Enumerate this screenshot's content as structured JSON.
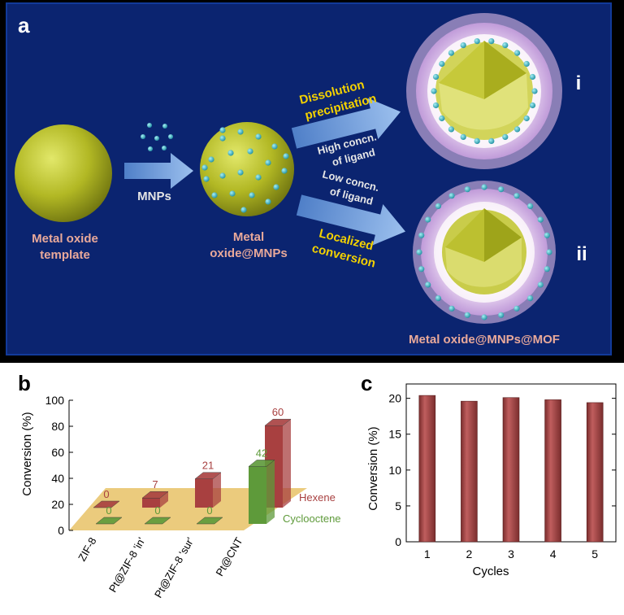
{
  "panel_a": {
    "letter": "a",
    "colors": {
      "background": "#0b2470",
      "panel_border": "#123a9a",
      "label_pink": "#e9a99a",
      "label_yellow": "#f3d100",
      "label_white": "#e6e6e6",
      "sphere": "#b8c02a",
      "mnp": "#3bb6c8"
    },
    "left_label": [
      "Metal oxide",
      "template"
    ],
    "arrow1_label": "MNPs",
    "middle_label": [
      "Metal",
      "oxide@MNPs"
    ],
    "upper_route": {
      "yellow": [
        "Dissolution",
        "precipitation"
      ],
      "white": [
        "High concn.",
        "of ligand"
      ]
    },
    "lower_route": {
      "yellow": [
        "Localized",
        "conversion"
      ],
      "white": [
        "Low concn.",
        "of ligand"
      ]
    },
    "product_i": "i",
    "product_ii": "ii",
    "bottom_label": "Metal oxide@MNPs@MOF"
  },
  "chart_data": [
    {
      "panel": "b",
      "type": "bar",
      "style": "3d",
      "categories": [
        "ZIF-8",
        "Pt@ZIF-8 'in'",
        "Pt@ZIF-8 'sur'",
        "Pt@CNT"
      ],
      "series": [
        {
          "name": "Hexene",
          "values": [
            0,
            7,
            21,
            60
          ],
          "color": "#a84040"
        },
        {
          "name": "Cyclooctene",
          "values": [
            0,
            0,
            0,
            42
          ],
          "color": "#5e9a3a"
        }
      ],
      "ylabel": "Conversion (%)",
      "ylim": [
        0,
        100
      ],
      "yticks": [
        0,
        20,
        40,
        60,
        80,
        100
      ],
      "floor_color": "#e8c266"
    },
    {
      "panel": "c",
      "type": "bar",
      "categories": [
        "1",
        "2",
        "3",
        "4",
        "5"
      ],
      "values": [
        20.4,
        19.6,
        20.1,
        19.8,
        19.4
      ],
      "xlabel": "Cycles",
      "ylabel": "Conversion (%)",
      "ylim": [
        0,
        22
      ],
      "yticks": [
        0,
        5,
        10,
        15,
        20
      ],
      "bar_color": "#a84a4a"
    }
  ]
}
